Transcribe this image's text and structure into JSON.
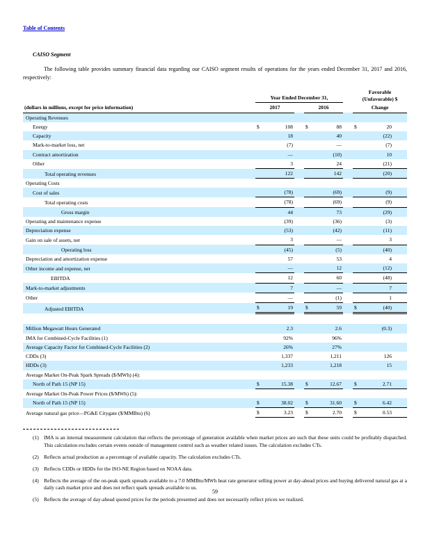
{
  "page": {
    "toc_link": "Table of Contents",
    "section_title": "CAISO Segment",
    "intro": "The following table provides summary financial data regarding our CAISO segment results of operations for the years ended December 31, 2017 and 2016, respectively:",
    "page_number": "59"
  },
  "colors": {
    "row_shade": "#cceeff",
    "link_blue": "#0000cc"
  },
  "table": {
    "header": {
      "dollars_note": "(dollars in millions, except for price information)",
      "year_ended": "Year Ended December 31,",
      "col_2017": "2017",
      "col_2016": "2016",
      "favorable_top": "Favorable",
      "favorable_mid": "(Unfavorable) $",
      "favorable_bottom": "Change"
    },
    "rows": [
      {
        "label": "Operating Revenues",
        "ind": 0,
        "shade": true
      },
      {
        "label": "Energy",
        "ind": 1,
        "shade": false,
        "d1": "$",
        "v1": "108",
        "d2": "$",
        "v2": "88",
        "d3": "$",
        "v3": "20"
      },
      {
        "label": "Capacity",
        "ind": 1,
        "shade": true,
        "v1": "18",
        "v2": "40",
        "v3": "(22)"
      },
      {
        "label": "Mark-to-market loss, net",
        "ind": 1,
        "shade": false,
        "v1": "(7)",
        "v2": "—",
        "v3": "(7)"
      },
      {
        "label": "Contract amortization",
        "ind": 1,
        "shade": true,
        "v1": "—",
        "v2": "(10)",
        "v3": "10"
      },
      {
        "label": "Other",
        "ind": 1,
        "shade": false,
        "v1": "3",
        "v2": "24",
        "v3": "(21)"
      },
      {
        "label": "Total operating revenues",
        "ind": 2,
        "shade": true,
        "v1": "122",
        "v2": "142",
        "v3": "(20)",
        "rt": true,
        "rb": true
      },
      {
        "label": "Operating Costs",
        "ind": 0,
        "shade": false
      },
      {
        "label": "Cost of sales",
        "ind": 1,
        "shade": true,
        "v1": "(78)",
        "v2": "(69)",
        "v3": "(9)"
      },
      {
        "label": "Total operating costs",
        "ind": 2,
        "shade": false,
        "v1": "(78)",
        "v2": "(69)",
        "v3": "(9)",
        "rt": true,
        "rb": true
      },
      {
        "label": "Gross margin",
        "ind": 4,
        "shade": true,
        "v1": "44",
        "v2": "73",
        "v3": "(29)"
      },
      {
        "label": "Operating and maintenance expense",
        "ind": 0,
        "shade": false,
        "v1": "(39)",
        "v2": "(36)",
        "v3": "(3)"
      },
      {
        "label": "Depreciation expense",
        "ind": 0,
        "shade": true,
        "v1": "(53)",
        "v2": "(42)",
        "v3": "(11)"
      },
      {
        "label": "Gain on sale of assets, net",
        "ind": 0,
        "shade": false,
        "v1": "3",
        "v2": "—",
        "v3": "3"
      },
      {
        "label": "Operating loss",
        "ind": 4,
        "shade": true,
        "v1": "(45)",
        "v2": "(5)",
        "v3": "(40)",
        "rt": true
      },
      {
        "label": "Depreciation and amortization expense",
        "ind": 0,
        "shade": false,
        "v1": "57",
        "v2": "53",
        "v3": "4"
      },
      {
        "label": "Other income and expense, net",
        "ind": 0,
        "shade": true,
        "v1": "—",
        "v2": "12",
        "v3": "(12)"
      },
      {
        "label": "EBITDA",
        "ind": 3,
        "shade": false,
        "v1": "12",
        "v2": "60",
        "v3": "(48)",
        "rt": true,
        "rb": true
      },
      {
        "label": "Mark-to-market adjustments",
        "ind": 0,
        "shade": true,
        "v1": "7",
        "v2": "—",
        "v3": "7",
        "rb": true
      },
      {
        "label": "Other",
        "ind": 0,
        "shade": false,
        "v1": "—",
        "v2": "(1)",
        "v3": "1",
        "rb": true
      },
      {
        "label": "Adjusted EBITDA",
        "ind": 2,
        "shade": true,
        "d1": "$",
        "v1": "19",
        "d2": "$",
        "v2": "59",
        "d3": "$",
        "v3": "(40)",
        "dbl": true
      },
      {
        "spacer": true
      },
      {
        "label": "Million Megawatt Hours Generated",
        "ind": 0,
        "shade": true,
        "v1": "2.3",
        "v2": "2.6",
        "v3": "(0.3)"
      },
      {
        "label": "IMA for Combined-Cycle Facilities (1)",
        "ind": 0,
        "shade": false,
        "v1": "92%",
        "v2": "96%"
      },
      {
        "label": "Average Capacity Factor for Combined-Cycle Facilities (2)",
        "ind": 0,
        "shade": true,
        "v1": "26%",
        "v2": "27%"
      },
      {
        "label": "CDDs (3)",
        "ind": 0,
        "shade": false,
        "v1": "1,337",
        "v2": "1,211",
        "v3": "126"
      },
      {
        "label": "HDDs (3)",
        "ind": 0,
        "shade": true,
        "v1": "1,233",
        "v2": "1,218",
        "v3": "15"
      },
      {
        "label": "Average Market On-Peak Spark Spreads ($/MWh) (4):",
        "ind": 0,
        "shade": false
      },
      {
        "label": "North of Path 15 (NP 15)",
        "ind": 1,
        "shade": true,
        "d1": "$",
        "v1": "15.38",
        "d2": "$",
        "v2": "12.67",
        "d3": "$",
        "v3": "2.71",
        "rb": true
      },
      {
        "label": "Average Market On-Peak Power Prices ($/MWh) (5):",
        "ind": 0,
        "shade": false
      },
      {
        "label": "North of Path 15 (NP 15)",
        "ind": 1,
        "shade": true,
        "d1": "$",
        "v1": "38.02",
        "d2": "$",
        "v2": "31.60",
        "d3": "$",
        "v3": "6.42",
        "rb": true
      },
      {
        "label": "Average natural gas price—PG&E Citygate ($/MMBtu) (6)",
        "ind": 0,
        "shade": false,
        "d1": "$",
        "v1": "3.23",
        "d2": "$",
        "v2": "2.70",
        "d3": "$",
        "v3": "0.53",
        "rb": true
      }
    ]
  },
  "footnotes": [
    {
      "num": "(1)",
      "text": "IMA is an internal measurement calculation that reflects the percentage of generation available when market prices are such that these units could be profitably dispatched. This calculation excludes certain events outside of management control such as weather related issues. The calculation excludes CTs."
    },
    {
      "num": "(2)",
      "text": "Reflects actual production as a percentage of available capacity. The calculation excludes CTs."
    },
    {
      "num": "(3)",
      "text": "Reflects CDDs or HDDs for the ISO-NE Region based on NOAA data."
    },
    {
      "num": "(4)",
      "text": "Reflects the average of the on-peak spark spreads available to a 7.0 MMBtu/MWh heat rate generator selling power at day-ahead prices and buying delivered natural gas at a daily cash market price and does not reflect spark spreads available to us."
    },
    {
      "num": "(5)",
      "text": "Reflects the average of day-ahead quoted prices for the periods presented and does not necessarily reflect prices we realized."
    }
  ]
}
